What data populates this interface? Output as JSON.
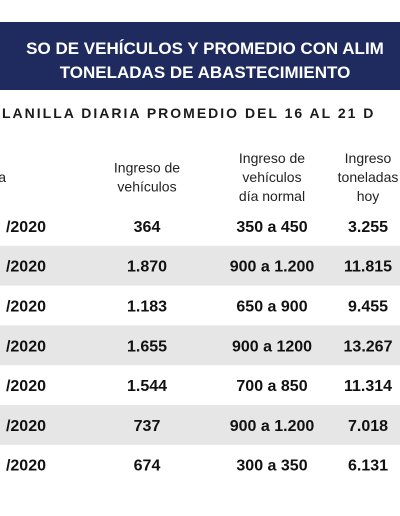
{
  "header": {
    "title": [
      "SO DE VEHÍCULOS Y PROMEDIO CON ALIM",
      "TONELADAS DE ABASTECIMIENTO"
    ],
    "subtitle": "LANILLA DIARIA PROMEDIO DEL 16 AL 21 D"
  },
  "table": {
    "columns": [
      [
        "a"
      ],
      [
        "Ingreso de",
        "vehículos"
      ],
      [
        "Ingreso de",
        "vehículos",
        "día normal"
      ],
      [
        "Ingreso",
        "toneladas",
        "hoy"
      ]
    ],
    "rows": [
      [
        "/2020",
        "364",
        "350 a 450",
        "3.255"
      ],
      [
        "/2020",
        "1.870",
        "900 a 1.200",
        "11.815"
      ],
      [
        "/2020",
        "1.183",
        "650 a 900",
        "9.455"
      ],
      [
        "/2020",
        "1.655",
        "900 a 1200",
        "13.267"
      ],
      [
        "/2020",
        "1.544",
        "700 a 850",
        "11.314"
      ],
      [
        "/2020",
        "737",
        "900 a 1.200",
        "7.018"
      ],
      [
        "/2020",
        "674",
        "300 a 350",
        "6.131"
      ]
    ]
  }
}
